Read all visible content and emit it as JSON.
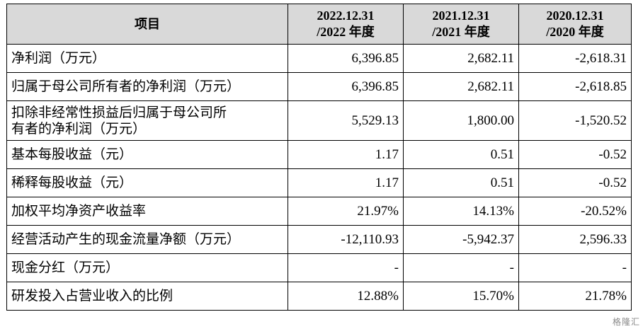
{
  "table": {
    "header": {
      "item": "项目",
      "col1_line1": "2022.12.31",
      "col1_line2": "/2022 年度",
      "col2_line1": "2021.12.31",
      "col2_line2": "/2021 年度",
      "col3_line1": "2020.12.31",
      "col3_line2": "/2020 年度"
    },
    "rows": [
      {
        "label": "净利润（万元）",
        "v2022": "6,396.85",
        "v2021": "2,682.11",
        "v2020": "-2,618.31"
      },
      {
        "label": "归属于母公司所有者的净利润（万元）",
        "v2022": "6,396.85",
        "v2021": "2,682.11",
        "v2020": "-2,618.85"
      },
      {
        "label_line1": "扣除非经常性损益后归属于母公司所",
        "label_line2": "有者的净利润（万元）",
        "v2022": "5,529.13",
        "v2021": "1,800.00",
        "v2020": "-1,520.52"
      },
      {
        "label": "基本每股收益（元）",
        "v2022": "1.17",
        "v2021": "0.51",
        "v2020": "-0.52"
      },
      {
        "label": "稀释每股收益（元）",
        "v2022": "1.17",
        "v2021": "0.51",
        "v2020": "-0.52"
      },
      {
        "label": "加权平均净资产收益率",
        "v2022": "21.97%",
        "v2021": "14.13%",
        "v2020": "-20.52%"
      },
      {
        "label": "经营活动产生的现金流量净额（万元）",
        "v2022": "-12,110.93",
        "v2021": "-5,942.37",
        "v2020": "2,596.33"
      },
      {
        "label": "现金分红（万元）",
        "v2022": "-",
        "v2021": "-",
        "v2020": "-"
      },
      {
        "label": "研发投入占营业收入的比例",
        "v2022": "12.88%",
        "v2021": "15.70%",
        "v2020": "21.78%"
      }
    ]
  },
  "watermark": "格隆汇"
}
